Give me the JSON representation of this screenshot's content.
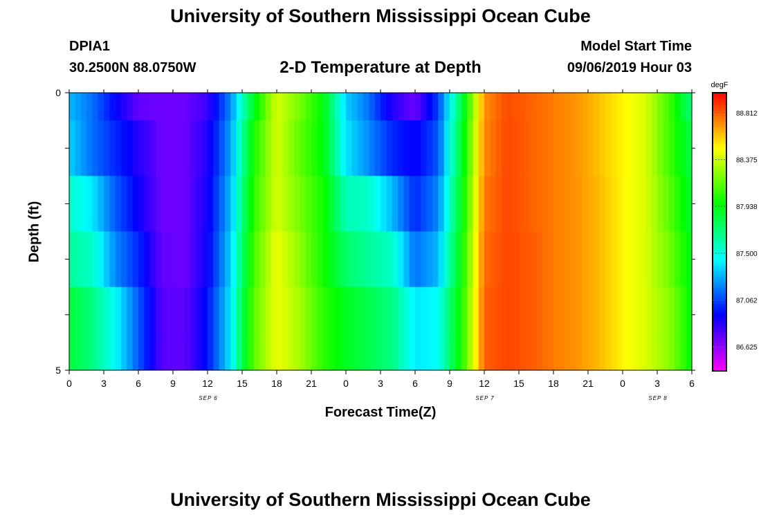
{
  "header": {
    "title": "University of Southern Mississippi Ocean Cube",
    "station": "DPIA1",
    "coords": "30.2500N 88.0750W",
    "subtitle": "2-D Temperature at Depth",
    "model_start_label": "Model Start Time",
    "model_start_value": "09/06/2019 Hour 03"
  },
  "footer": {
    "title": "University of Southern Mississippi Ocean Cube"
  },
  "chart_data": {
    "type": "heatmap",
    "xlabel": "Forecast Time(Z)",
    "ylabel": "Depth (ft)",
    "x_ticks": [
      "0",
      "3",
      "6",
      "9",
      "12",
      "15",
      "18",
      "21",
      "0",
      "3",
      "6",
      "9",
      "12",
      "15",
      "18",
      "21",
      "0",
      "3",
      "6"
    ],
    "day_labels": [
      {
        "label": "SEP 6",
        "hour": 12
      },
      {
        "label": "SEP 7",
        "hour": 36
      },
      {
        "label": "SEP 8",
        "hour": 51
      }
    ],
    "y_ticks": [
      "0",
      "5"
    ],
    "y_range": [
      0,
      5
    ],
    "x_range_hours": [
      0,
      54
    ],
    "colorbar": {
      "unit": "degF",
      "ticks": [
        "88.812",
        "88.375",
        "87.938",
        "87.500",
        "87.062",
        "86.625"
      ],
      "tick_values": [
        88.812,
        88.375,
        87.938,
        87.5,
        87.062,
        86.625
      ],
      "range": [
        86.4,
        89.0
      ]
    },
    "depth_rows": [
      0.5,
      1.5,
      2.5,
      3.5,
      4.5
    ],
    "columns": [
      {
        "x": [
          0,
          2,
          4,
          6,
          8,
          10,
          12,
          14,
          16,
          18,
          20,
          22,
          24,
          26,
          28,
          30,
          32,
          34,
          36,
          38,
          40,
          42,
          44,
          46,
          48,
          50,
          52,
          54
        ],
        "values": [
          87.3,
          87.15,
          86.92,
          86.72,
          86.7,
          86.7,
          86.8,
          87.2,
          87.9,
          88.4,
          88.2,
          87.95,
          87.35,
          87.15,
          86.85,
          86.7,
          87.05,
          87.8,
          88.7,
          88.85,
          88.8,
          88.75,
          88.7,
          88.6,
          88.5,
          88.4,
          88.1,
          87.7
        ]
      },
      {
        "x": [
          0,
          2,
          4,
          6,
          8,
          10,
          12,
          14,
          16,
          18,
          20,
          22,
          24,
          26,
          28,
          30,
          32,
          34,
          36,
          38,
          40,
          42,
          44,
          46,
          48,
          50,
          52,
          54
        ],
        "values": [
          87.35,
          87.15,
          87.0,
          86.85,
          86.7,
          86.7,
          86.85,
          87.25,
          88.0,
          88.4,
          88.15,
          87.95,
          87.4,
          87.2,
          87.0,
          86.9,
          87.1,
          87.85,
          88.72,
          88.86,
          88.8,
          88.75,
          88.7,
          88.6,
          88.5,
          88.4,
          88.1,
          87.8
        ]
      },
      {
        "x": [
          0,
          2,
          4,
          6,
          8,
          10,
          12,
          14,
          16,
          18,
          20,
          22,
          24,
          26,
          28,
          30,
          32,
          34,
          36,
          38,
          40,
          42,
          44,
          46,
          48,
          50,
          52,
          54
        ],
        "values": [
          87.55,
          87.4,
          87.1,
          86.9,
          86.7,
          86.7,
          86.88,
          87.3,
          88.05,
          88.4,
          88.2,
          88.0,
          87.6,
          87.55,
          87.3,
          87.0,
          87.2,
          87.9,
          88.75,
          88.86,
          88.8,
          88.75,
          88.7,
          88.62,
          88.5,
          88.4,
          88.15,
          87.85
        ]
      },
      {
        "x": [
          0,
          2,
          4,
          6,
          8,
          10,
          12,
          14,
          16,
          18,
          20,
          22,
          24,
          26,
          28,
          30,
          32,
          34,
          36,
          38,
          40,
          42,
          44,
          46,
          48,
          50,
          52,
          54
        ],
        "values": [
          87.65,
          87.55,
          87.2,
          87.0,
          86.72,
          86.7,
          86.9,
          87.35,
          88.1,
          88.45,
          88.25,
          88.0,
          87.75,
          87.65,
          87.55,
          87.15,
          87.3,
          87.95,
          88.78,
          88.86,
          88.82,
          88.75,
          88.7,
          88.62,
          88.5,
          88.4,
          88.2,
          87.9
        ]
      },
      {
        "x": [
          0,
          2,
          4,
          6,
          8,
          10,
          12,
          14,
          16,
          18,
          20,
          22,
          24,
          26,
          28,
          30,
          32,
          34,
          36,
          38,
          40,
          42,
          44,
          46,
          48,
          50,
          52,
          54
        ],
        "values": [
          87.85,
          87.7,
          87.45,
          87.1,
          86.75,
          86.72,
          86.95,
          87.4,
          88.15,
          88.45,
          88.3,
          88.05,
          87.9,
          87.8,
          87.7,
          87.4,
          87.45,
          88.0,
          88.8,
          88.86,
          88.82,
          88.75,
          88.7,
          88.62,
          88.5,
          88.4,
          88.25,
          87.95
        ]
      }
    ]
  }
}
